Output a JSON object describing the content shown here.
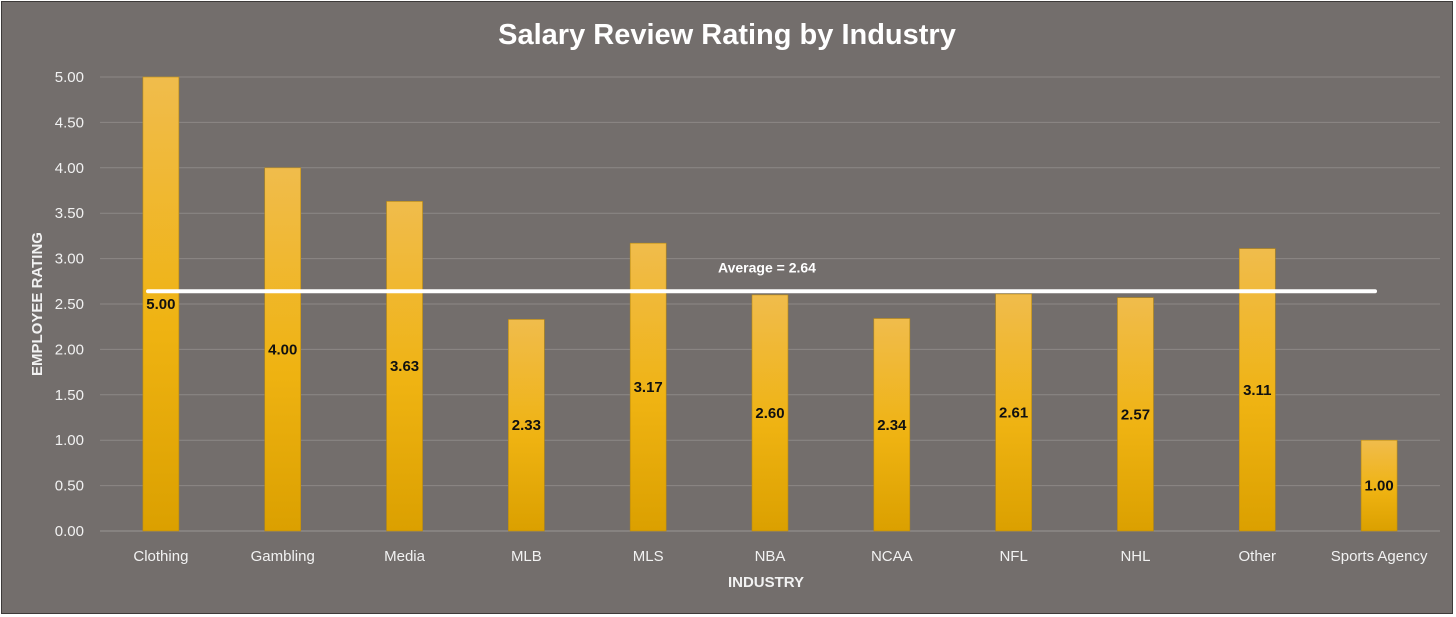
{
  "chart_data": {
    "type": "bar",
    "title": "Salary Review Rating by Industry",
    "xlabel": "INDUSTRY",
    "ylabel": "EMPLOYEE RATING",
    "categories": [
      "Clothing",
      "Gambling",
      "Media",
      "MLB",
      "MLS",
      "NBA",
      "NCAA",
      "NFL",
      "NHL",
      "Other",
      "Sports Agency"
    ],
    "values": [
      5.0,
      4.0,
      3.63,
      2.33,
      3.17,
      2.6,
      2.34,
      2.61,
      2.57,
      3.11,
      1.0
    ],
    "data_labels": [
      "5.00",
      "4.00",
      "3.63",
      "2.33",
      "3.17",
      "2.60",
      "2.34",
      "2.61",
      "2.57",
      "3.11",
      "1.00"
    ],
    "ylim": [
      0,
      5
    ],
    "yticks": [
      "0.00",
      "0.50",
      "1.00",
      "1.50",
      "2.00",
      "2.50",
      "3.00",
      "3.50",
      "4.00",
      "4.50",
      "5.00"
    ],
    "grid": true,
    "reference_line": {
      "value": 2.64,
      "label": "Average = 2.64"
    },
    "colors": {
      "background": "#736e6c",
      "bar_top": "#f0bc4c",
      "bar_bottom": "#dba000",
      "gridline": "#8c8886",
      "average_line": "#ffffff",
      "text": "#f2f2f2"
    }
  }
}
